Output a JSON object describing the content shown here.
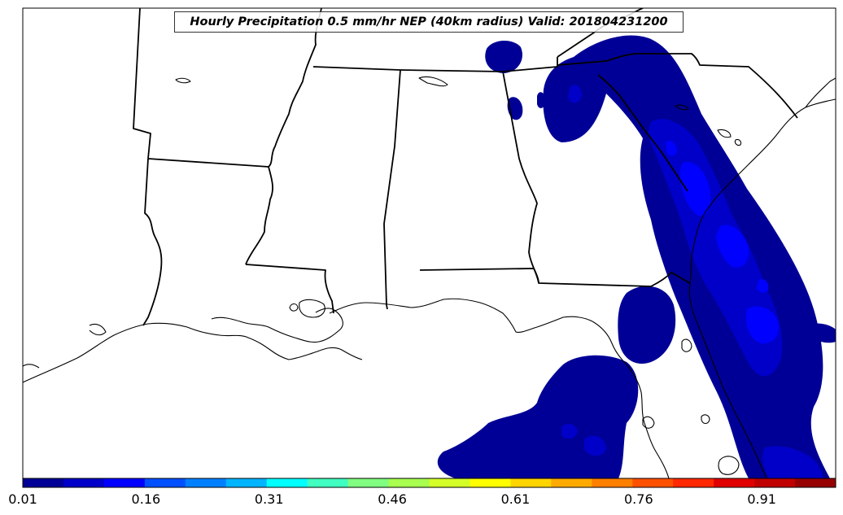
{
  "map": {
    "title": "Hourly Precipitation 0.5 mm/hr NEP (40km radius) Valid: 201804231200",
    "region": "Southeastern United States",
    "projection_style": "lambert-conformal-like",
    "background_color": "#ffffff",
    "boundary_color": "#000000"
  },
  "precipitation_field": {
    "variable": "neighborhood exceedance probability",
    "threshold": "0.5 mm/hr",
    "radius": "40km",
    "valid_time": "201804231200",
    "fill_levels": [
      {
        "level": 1,
        "color": "#000096"
      },
      {
        "level": 2,
        "color": "#0000c8"
      },
      {
        "level": 3,
        "color": "#0000ff"
      },
      {
        "level": 4,
        "color": "#0028ff"
      }
    ]
  },
  "colorbar": {
    "min": 0.01,
    "max": 1.0,
    "segments": 20,
    "colors": [
      "#000096",
      "#0000c8",
      "#0000ff",
      "#0050ff",
      "#0080ff",
      "#00b4ff",
      "#00ffff",
      "#40ffc0",
      "#80ff80",
      "#a8ff50",
      "#d4ff28",
      "#ffff00",
      "#ffd400",
      "#ffaa00",
      "#ff7f00",
      "#ff5000",
      "#ff2800",
      "#e00000",
      "#c00000",
      "#960000"
    ],
    "tick_labels": [
      "0.01",
      "0.16",
      "0.31",
      "0.46",
      "0.61",
      "0.76",
      "0.91"
    ],
    "tick_values": [
      0.01,
      0.16,
      0.31,
      0.46,
      0.61,
      0.76,
      0.91
    ]
  }
}
